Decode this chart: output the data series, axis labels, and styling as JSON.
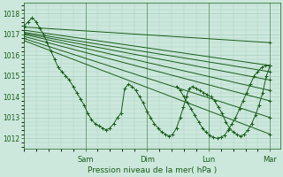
{
  "xlabel": "Pression niveau de la mer( hPa )",
  "bg_color": "#cce8dc",
  "line_color": "#1a5c1a",
  "grid_color": "#a8cfc0",
  "tick_color": "#1a5c1a",
  "label_color": "#1a5c1a",
  "ylim": [
    1011.5,
    1018.5
  ],
  "yticks": [
    1012,
    1013,
    1014,
    1015,
    1016,
    1017,
    1018
  ],
  "xlim": [
    0.0,
    1.04
  ],
  "day_labels": [
    "Sam",
    "Dim",
    "Lun",
    "Mar"
  ],
  "day_positions": [
    0.25,
    0.5,
    0.75,
    1.0
  ],
  "series": [
    {
      "x": [
        0.0,
        1.0
      ],
      "y": [
        1017.35,
        1016.6
      ],
      "marker": "+"
    },
    {
      "x": [
        0.0,
        1.0
      ],
      "y": [
        1017.2,
        1015.5
      ],
      "marker": "+"
    },
    {
      "x": [
        0.0,
        1.0
      ],
      "y": [
        1017.1,
        1015.2
      ],
      "marker": "+"
    },
    {
      "x": [
        0.0,
        1.0
      ],
      "y": [
        1017.05,
        1014.8
      ],
      "marker": "+"
    },
    {
      "x": [
        0.0,
        1.0
      ],
      "y": [
        1017.0,
        1014.3
      ],
      "marker": "+"
    },
    {
      "x": [
        0.0,
        1.0
      ],
      "y": [
        1016.9,
        1013.8
      ],
      "marker": "+"
    },
    {
      "x": [
        0.0,
        1.0
      ],
      "y": [
        1016.8,
        1013.0
      ],
      "marker": "+"
    },
    {
      "x": [
        0.0,
        1.0
      ],
      "y": [
        1016.7,
        1012.2
      ],
      "marker": "+"
    },
    {
      "x": [
        0.0,
        0.018,
        0.034,
        0.05,
        0.065,
        0.08,
        0.095,
        0.11,
        0.125,
        0.14,
        0.155,
        0.17,
        0.185,
        0.2,
        0.215,
        0.23,
        0.245,
        0.26,
        0.275,
        0.29,
        0.305,
        0.32,
        0.335,
        0.35,
        0.365,
        0.38,
        0.395,
        0.41,
        0.425,
        0.44,
        0.455,
        0.47,
        0.485,
        0.5,
        0.515,
        0.53,
        0.545,
        0.56,
        0.575,
        0.59,
        0.605,
        0.62,
        0.635,
        0.648,
        0.66,
        0.672,
        0.685,
        0.7,
        0.715,
        0.73,
        0.745,
        0.76,
        0.775,
        0.79,
        0.805,
        0.82,
        0.835,
        0.85,
        0.865,
        0.88,
        0.895,
        0.91,
        0.925,
        0.94,
        0.955,
        0.97,
        0.985,
        1.0
      ],
      "y": [
        1017.4,
        1017.6,
        1017.8,
        1017.6,
        1017.3,
        1017.0,
        1016.6,
        1016.2,
        1015.8,
        1015.4,
        1015.2,
        1015.0,
        1014.8,
        1014.5,
        1014.2,
        1013.9,
        1013.6,
        1013.2,
        1012.9,
        1012.7,
        1012.6,
        1012.5,
        1012.4,
        1012.5,
        1012.7,
        1013.0,
        1013.2,
        1014.4,
        1014.6,
        1014.5,
        1014.3,
        1014.0,
        1013.7,
        1013.3,
        1013.0,
        1012.7,
        1012.5,
        1012.3,
        1012.2,
        1012.1,
        1012.2,
        1012.5,
        1013.0,
        1013.5,
        1014.0,
        1014.4,
        1014.5,
        1014.4,
        1014.3,
        1014.2,
        1014.1,
        1014.0,
        1013.8,
        1013.5,
        1013.2,
        1012.8,
        1012.5,
        1012.3,
        1012.2,
        1012.1,
        1012.2,
        1012.4,
        1012.7,
        1013.1,
        1013.6,
        1014.2,
        1015.0,
        1015.5
      ],
      "marker": "+"
    },
    {
      "x": [
        0.62,
        0.635,
        0.65,
        0.665,
        0.68,
        0.695,
        0.71,
        0.725,
        0.74,
        0.755,
        0.77,
        0.785,
        0.8,
        0.815,
        0.83,
        0.845,
        0.86,
        0.875,
        0.89,
        0.905,
        0.92,
        0.935,
        0.95,
        0.965,
        0.98,
        1.0
      ],
      "y": [
        1014.5,
        1014.3,
        1014.0,
        1013.7,
        1013.4,
        1013.1,
        1012.8,
        1012.5,
        1012.3,
        1012.15,
        1012.05,
        1012.0,
        1012.05,
        1012.15,
        1012.4,
        1012.7,
        1013.0,
        1013.4,
        1013.8,
        1014.2,
        1014.6,
        1015.0,
        1015.2,
        1015.4,
        1015.5,
        1015.5
      ],
      "marker": "+"
    }
  ]
}
